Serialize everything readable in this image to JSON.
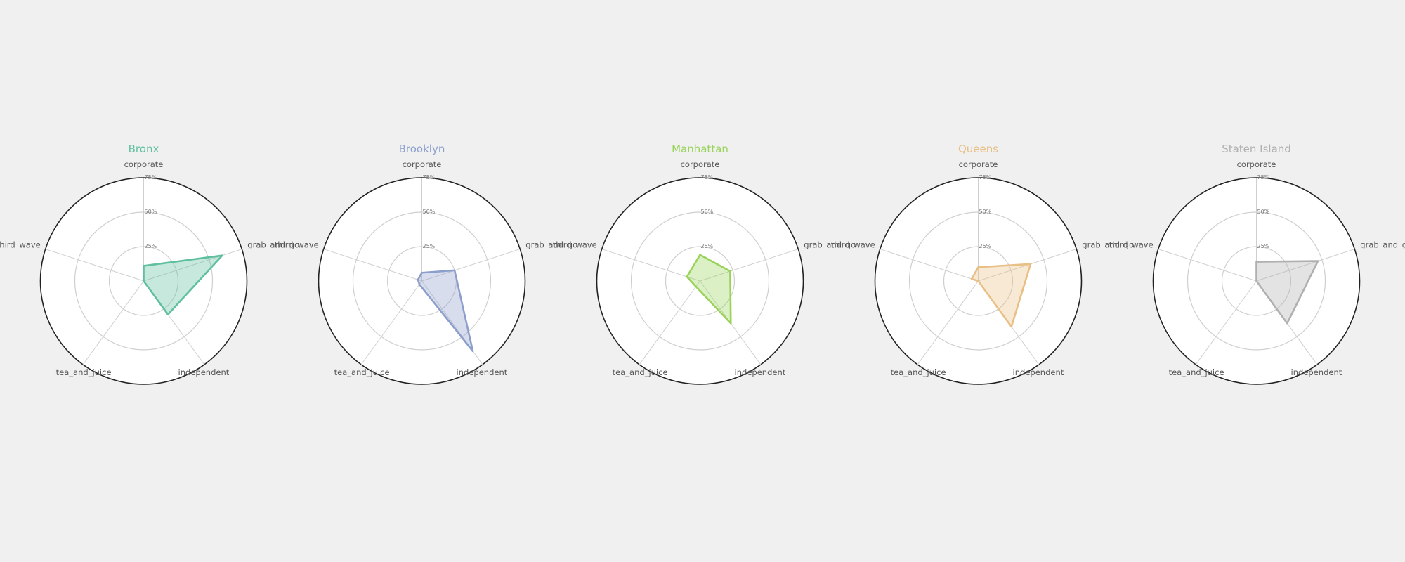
{
  "chart_data": {
    "type": "radar",
    "axes": [
      "corporate",
      "grab_and_go",
      "independent",
      "tea_and_juice",
      "third_wave"
    ],
    "rlim": [
      0,
      75
    ],
    "r_ticks": [
      25,
      50,
      75
    ],
    "r_tick_labels": [
      "25%",
      "50%",
      "75%"
    ],
    "grid": true,
    "panels": [
      {
        "title": "Bronx",
        "color": "#5fbf9f",
        "values": {
          "corporate": 11,
          "grab_and_go": 60,
          "independent": 30,
          "tea_and_juice": 0,
          "third_wave": 0
        }
      },
      {
        "title": "Brooklyn",
        "color": "#8c9fcc",
        "values": {
          "corporate": 6,
          "grab_and_go": 25,
          "independent": 63,
          "tea_and_juice": 3,
          "third_wave": 3
        }
      },
      {
        "title": "Manhattan",
        "color": "#99d35a",
        "values": {
          "corporate": 19,
          "grab_and_go": 23,
          "independent": 38,
          "tea_and_juice": 5,
          "third_wave": 10
        }
      },
      {
        "title": "Queens",
        "color": "#e8bf85",
        "values": {
          "corporate": 10,
          "grab_and_go": 40,
          "independent": 41,
          "tea_and_juice": 0,
          "third_wave": 5
        }
      },
      {
        "title": "Staten Island",
        "color": "#b0b0b0",
        "values": {
          "corporate": 14,
          "grab_and_go": 47,
          "independent": 38,
          "tea_and_juice": 0,
          "third_wave": 0
        }
      }
    ]
  }
}
